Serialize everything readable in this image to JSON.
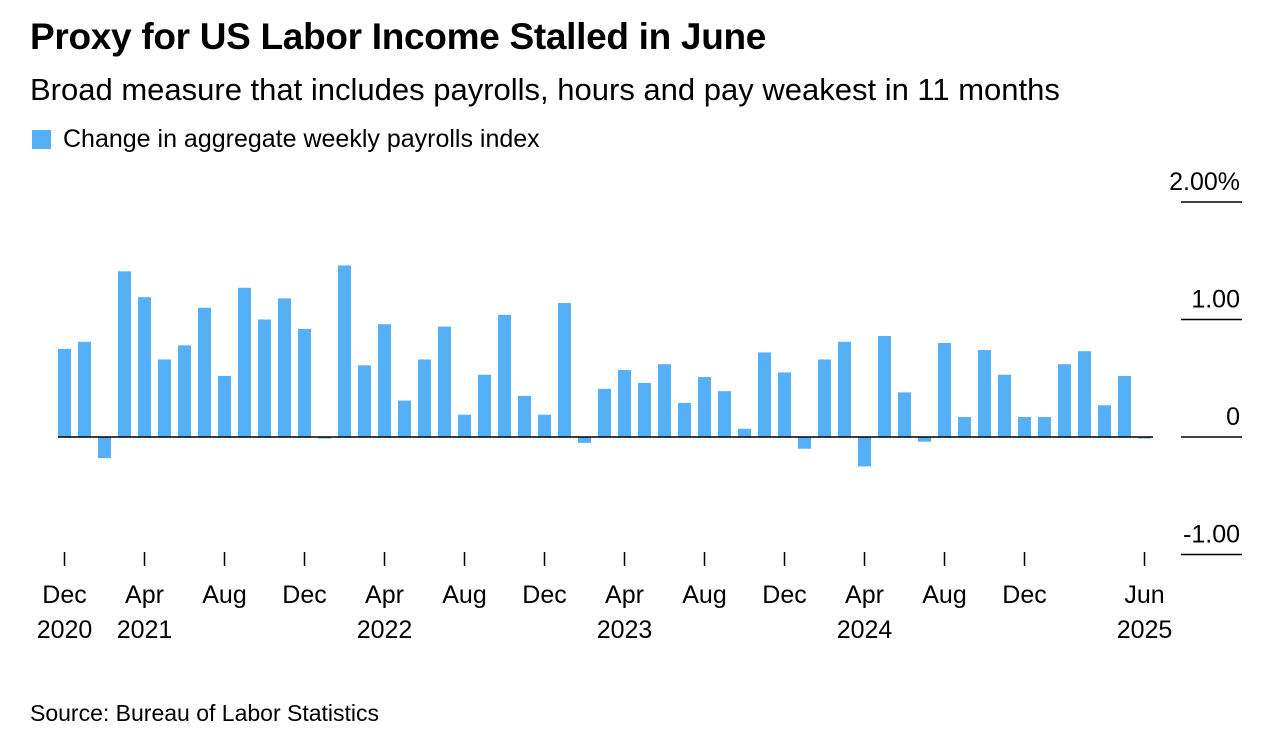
{
  "title": "Proxy for US Labor Income Stalled in June",
  "subtitle": "Broad measure that includes payrolls, hours and pay weakest in 11 months",
  "source": "Source: Bureau of Labor Statistics",
  "colors": {
    "bar": "#56b0f8",
    "axis": "#000000"
  },
  "chart_data": {
    "type": "bar",
    "title": "Proxy for US Labor Income Stalled in June",
    "subtitle": "Broad measure that includes payrolls, hours and pay weakest in 11 months",
    "legend": "top-left",
    "grid": false,
    "ylim": [
      -1.0,
      2.0
    ],
    "y_unit": "%",
    "y_axis_position": "right",
    "yticks": [
      {
        "value": 2.0,
        "label": "2.00%"
      },
      {
        "value": 1.0,
        "label": "1.00"
      },
      {
        "value": 0,
        "label": "0"
      },
      {
        "value": -1.0,
        "label": "-1.00"
      }
    ],
    "categories": [
      "2020-12",
      "2021-01",
      "2021-02",
      "2021-03",
      "2021-04",
      "2021-05",
      "2021-06",
      "2021-07",
      "2021-08",
      "2021-09",
      "2021-10",
      "2021-11",
      "2021-12",
      "2022-01",
      "2022-02",
      "2022-03",
      "2022-04",
      "2022-05",
      "2022-06",
      "2022-07",
      "2022-08",
      "2022-09",
      "2022-10",
      "2022-11",
      "2022-12",
      "2023-01",
      "2023-02",
      "2023-03",
      "2023-04",
      "2023-05",
      "2023-06",
      "2023-07",
      "2023-08",
      "2023-09",
      "2023-10",
      "2023-11",
      "2023-12",
      "2024-01",
      "2024-02",
      "2024-03",
      "2024-04",
      "2024-05",
      "2024-06",
      "2024-07",
      "2024-08",
      "2024-09",
      "2024-10",
      "2024-11",
      "2024-12",
      "2025-01",
      "2025-02",
      "2025-03",
      "2025-04",
      "2025-05",
      "2025-06"
    ],
    "series": [
      {
        "name": "Change in aggregate weekly payrolls index",
        "values": [
          0.75,
          0.81,
          -0.18,
          1.41,
          1.19,
          0.66,
          0.78,
          1.1,
          0.52,
          1.27,
          1.0,
          1.18,
          0.92,
          -0.01,
          1.46,
          0.61,
          0.96,
          0.31,
          0.66,
          0.94,
          0.19,
          0.53,
          1.04,
          0.35,
          0.19,
          1.14,
          -0.05,
          0.41,
          0.57,
          0.46,
          0.62,
          0.29,
          0.51,
          0.39,
          0.07,
          0.72,
          0.55,
          -0.1,
          0.66,
          0.81,
          -0.25,
          0.86,
          0.38,
          -0.04,
          0.8,
          0.17,
          0.74,
          0.53,
          0.17,
          0.17,
          0.62,
          0.73,
          0.27,
          0.52,
          -0.01
        ]
      }
    ],
    "x_tick_labels": [
      {
        "index": 0,
        "line1": "Dec",
        "line2": "2020"
      },
      {
        "index": 4,
        "line1": "Apr",
        "line2": "2021"
      },
      {
        "index": 8,
        "line1": "Aug",
        "line2": ""
      },
      {
        "index": 12,
        "line1": "Dec",
        "line2": ""
      },
      {
        "index": 16,
        "line1": "Apr",
        "line2": "2022"
      },
      {
        "index": 20,
        "line1": "Aug",
        "line2": ""
      },
      {
        "index": 24,
        "line1": "Dec",
        "line2": ""
      },
      {
        "index": 28,
        "line1": "Apr",
        "line2": "2023"
      },
      {
        "index": 32,
        "line1": "Aug",
        "line2": ""
      },
      {
        "index": 36,
        "line1": "Dec",
        "line2": ""
      },
      {
        "index": 40,
        "line1": "Apr",
        "line2": "2024"
      },
      {
        "index": 44,
        "line1": "Aug",
        "line2": ""
      },
      {
        "index": 48,
        "line1": "Dec",
        "line2": ""
      },
      {
        "index": 54,
        "line1": "Jun",
        "line2": "2025"
      }
    ]
  }
}
